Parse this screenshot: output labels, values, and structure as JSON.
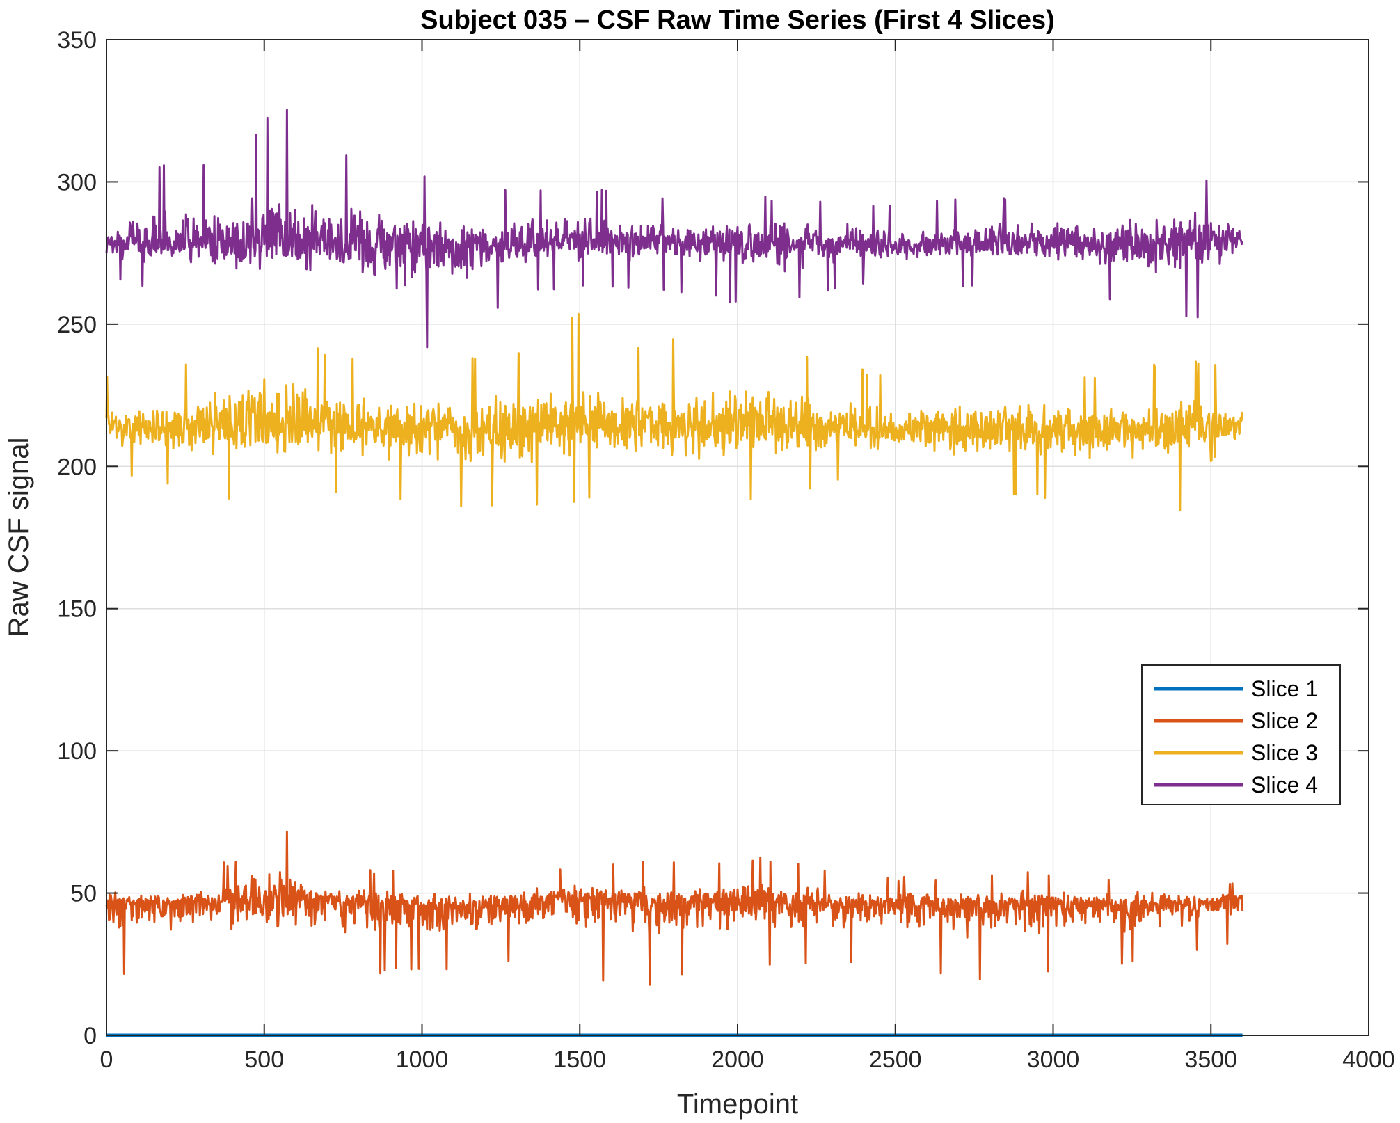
{
  "chart_data": {
    "type": "line",
    "title": "Subject 035 – CSF Raw Time Series (First 4 Slices)",
    "xlabel": "Timepoint",
    "ylabel": "Raw CSF signal",
    "xlim": [
      0,
      4000
    ],
    "ylim": [
      0,
      350
    ],
    "xticks": [
      0,
      500,
      1000,
      1500,
      2000,
      2500,
      3000,
      3500,
      4000
    ],
    "yticks": [
      0,
      50,
      100,
      150,
      200,
      250,
      300,
      350
    ],
    "xtick_labels": [
      "0",
      "500",
      "1000",
      "1500",
      "2000",
      "2500",
      "3000",
      "3500",
      "4000"
    ],
    "ytick_labels": [
      "0",
      "50",
      "100",
      "150",
      "200",
      "250",
      "300",
      "350"
    ],
    "grid": true,
    "legend_position": "right",
    "n_timepoints": 3600,
    "series": [
      {
        "name": "Slice 1",
        "color": "#0072BD",
        "x": [
          0,
          3600
        ],
        "y": [
          0,
          0
        ]
      },
      {
        "name": "Slice 2",
        "color": "#D95319",
        "x": [
          0,
          200,
          400,
          550,
          700,
          900,
          1100,
          1300,
          1500,
          1700,
          1900,
          2100,
          2300,
          2500,
          2700,
          2900,
          3100,
          3300,
          3500,
          3600
        ],
        "y": [
          47,
          46,
          47,
          48,
          47,
          46,
          45,
          46,
          48,
          47,
          47,
          47,
          46,
          46,
          46,
          47,
          46,
          46,
          46,
          48
        ],
        "y_min": [
          20,
          22,
          20,
          20,
          20,
          22,
          22,
          25,
          20,
          17,
          22,
          24,
          24,
          26,
          18,
          21,
          20,
          27,
          30,
          33
        ],
        "y_max": [
          55,
          56,
          62,
          75,
          59,
          58,
          57,
          57,
          61,
          62,
          61,
          63,
          58,
          56,
          56,
          58,
          56,
          56,
          56,
          54
        ]
      },
      {
        "name": "Slice 3",
        "color": "#EDB120",
        "x": [
          0,
          200,
          400,
          550,
          700,
          900,
          1100,
          1300,
          1500,
          1700,
          1900,
          2100,
          2300,
          2500,
          2700,
          2900,
          3100,
          3300,
          3500,
          3600
        ],
        "y": [
          214,
          213,
          215,
          216,
          215,
          213,
          212,
          213,
          215,
          215,
          215,
          215,
          214,
          213,
          213,
          214,
          213,
          213,
          214,
          215
        ],
        "y_min": [
          196,
          193,
          188,
          187,
          190,
          188,
          184,
          186,
          187,
          189,
          184,
          188,
          194,
          197,
          185,
          190,
          184,
          190,
          179,
          200
        ],
        "y_max": [
          232,
          233,
          245,
          257,
          240,
          239,
          239,
          240,
          255,
          242,
          248,
          246,
          236,
          232,
          232,
          238,
          232,
          236,
          238,
          228
        ]
      },
      {
        "name": "Slice 4",
        "color": "#7E2F8E",
        "x": [
          0,
          200,
          400,
          550,
          700,
          900,
          1100,
          1300,
          1500,
          1700,
          1900,
          2100,
          2300,
          2500,
          2700,
          2900,
          3100,
          3300,
          3500,
          3600
        ],
        "y": [
          279,
          278,
          279,
          280,
          279,
          278,
          277,
          278,
          279,
          279,
          279,
          279,
          278,
          278,
          278,
          279,
          278,
          278,
          279,
          280
        ],
        "y_min": [
          265,
          262,
          251,
          250,
          258,
          241,
          240,
          260,
          262,
          262,
          260,
          254,
          262,
          264,
          262,
          262,
          262,
          253,
          252,
          270
        ],
        "y_max": [
          297,
          307,
          305,
          330,
          310,
          311,
          296,
          298,
          300,
          294,
          296,
          295,
          294,
          293,
          294,
          296,
          296,
          303,
          302,
          297
        ]
      }
    ]
  }
}
